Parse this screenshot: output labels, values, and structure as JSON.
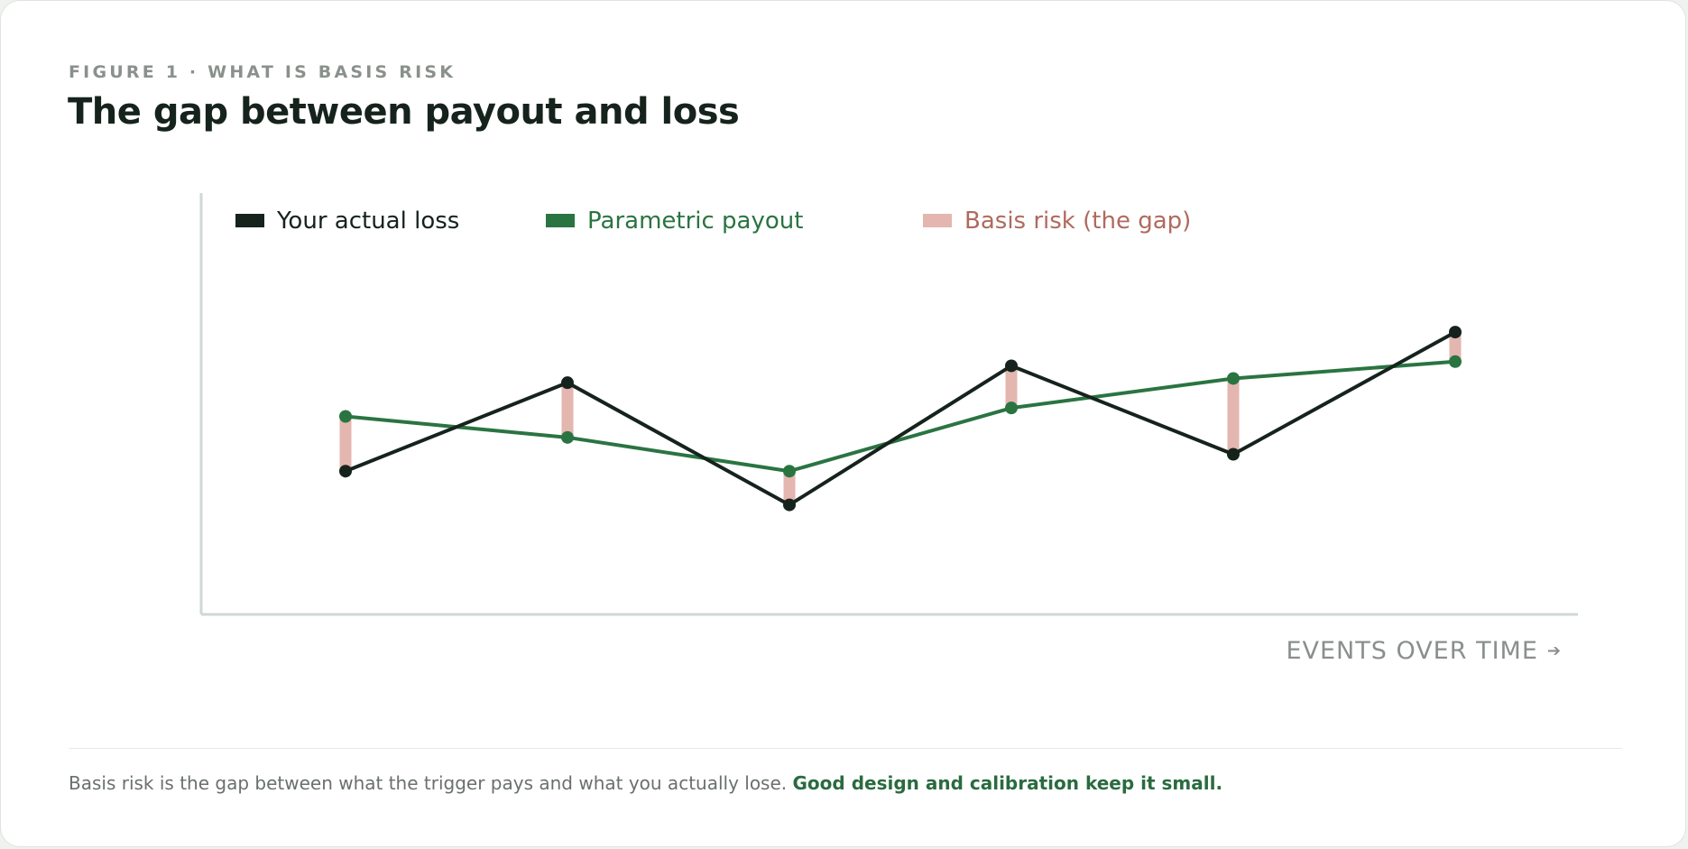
{
  "figure": {
    "eyebrow": "FIGURE 1 · WHAT IS BASIS RISK",
    "title": "The gap between payout and loss",
    "x_caption": "EVENTS OVER TIME",
    "arrow_icon": "arrow-right-icon",
    "footnote_text": "Basis risk is the gap between what the trigger pays and what you actually lose.",
    "footnote_emphasis": "Good design and calibration keep it small."
  },
  "colors": {
    "loss": "#16231d",
    "payout": "#2a7442",
    "gap": "#e4b6b0",
    "gap_text": "#b06a5e",
    "axis": "#cfd8d2"
  },
  "chart_data": {
    "type": "line",
    "title": "The gap between payout and loss",
    "xlabel": "EVENTS OVER TIME",
    "ylabel": "",
    "x": [
      1,
      2,
      3,
      4,
      5,
      6
    ],
    "ylim": [
      0,
      100
    ],
    "legend_position": "top-left",
    "grid": false,
    "series": [
      {
        "name": "Your actual loss",
        "values": [
          34,
          55,
          26,
          59,
          38,
          67
        ]
      },
      {
        "name": "Parametric payout",
        "values": [
          47,
          42,
          34,
          49,
          56,
          60
        ]
      }
    ],
    "band_series": {
      "name": "Basis risk (the gap)"
    }
  }
}
